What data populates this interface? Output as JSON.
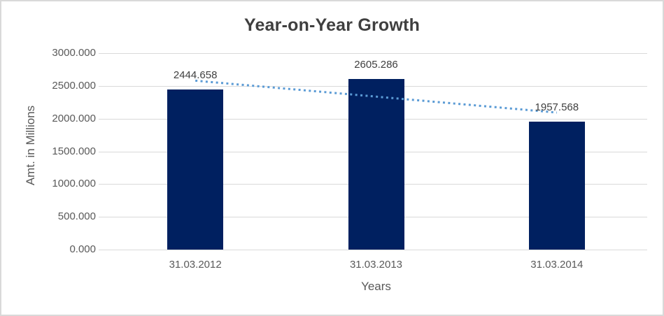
{
  "chart_data": {
    "type": "bar",
    "title": "Year-on-Year Growth",
    "xlabel": "Years",
    "ylabel": "Amt. in Millions",
    "categories": [
      "31.03.2012",
      "31.03.2013",
      "31.03.2014"
    ],
    "values": [
      2444.658,
      2605.286,
      1957.568
    ],
    "data_labels": [
      "2444.658",
      "2605.286",
      "1957.568"
    ],
    "y_ticks": [
      {
        "value": 0,
        "label": "0.000"
      },
      {
        "value": 500,
        "label": "500.000"
      },
      {
        "value": 1000,
        "label": "1000.000"
      },
      {
        "value": 1500,
        "label": "1500.000"
      },
      {
        "value": 2000,
        "label": "2000.000"
      },
      {
        "value": 2500,
        "label": "2500.000"
      },
      {
        "value": 3000,
        "label": "3000.000"
      }
    ],
    "ylim": [
      0,
      3000
    ],
    "grid": "horizontal",
    "legend": "none",
    "trendline": {
      "type": "linear",
      "style": "dotted",
      "color": "#5b9bd5",
      "endpoint_values": [
        2579.4,
        2092.3
      ]
    }
  },
  "colors": {
    "bar": "#002060",
    "trend": "#5b9bd5",
    "grid": "#d9d9d9",
    "border": "#d9d9d9",
    "text_dark": "#3f3f3f",
    "text_gray": "#595959"
  }
}
